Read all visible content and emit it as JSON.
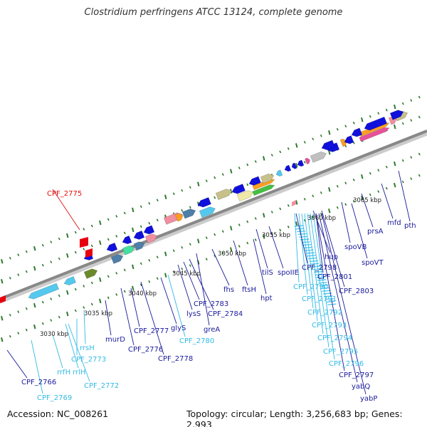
{
  "title": "Clostridium perfringens ATCC 13124, complete genome",
  "accession": "Accession: NC_008261",
  "topology": "Topology: circular; Length: 3,256,683 bp; Genes: 2,993",
  "colors": {
    "blue_gene": "#0a0ad8",
    "cyan_gene": "#55c8ee",
    "red_gene": "#e8000e",
    "label_blue": "#1a1a9a",
    "label_cyan": "#33bbe6",
    "label_red": "#e01010",
    "backbone": "#888888",
    "tick_green": "#1f6b1f"
  },
  "scale_ticks": [
    "3030 kbp",
    "3035 kbp",
    "3040 kbp",
    "3045 kbp",
    "3050 kbp",
    "3055 kbp",
    "3060 kbp",
    "3065 kbp"
  ],
  "gene_labels": [
    {
      "text": "CPF_2775",
      "color": "red"
    },
    {
      "text": "CPF_2766",
      "color": "blue"
    },
    {
      "text": "CPF_2769",
      "color": "cyan"
    },
    {
      "text": "rrfH",
      "color": "cyan"
    },
    {
      "text": "rrlH",
      "color": "cyan"
    },
    {
      "text": "CPF_2772",
      "color": "cyan"
    },
    {
      "text": "CPF_2773",
      "color": "cyan"
    },
    {
      "text": "rrsH",
      "color": "cyan"
    },
    {
      "text": "murD",
      "color": "blue"
    },
    {
      "text": "CPF_2776",
      "color": "blue"
    },
    {
      "text": "CPF_2777",
      "color": "blue"
    },
    {
      "text": "CPF_2778",
      "color": "blue"
    },
    {
      "text": "glyS",
      "color": "blue"
    },
    {
      "text": "CPF_2780",
      "color": "cyan"
    },
    {
      "text": "lysS",
      "color": "blue"
    },
    {
      "text": "CPF_2783",
      "color": "blue"
    },
    {
      "text": "CPF_2784",
      "color": "blue"
    },
    {
      "text": "greA",
      "color": "blue"
    },
    {
      "text": "fhs",
      "color": "blue"
    },
    {
      "text": "ftsH",
      "color": "blue"
    },
    {
      "text": "hpt",
      "color": "blue"
    },
    {
      "text": "tilS",
      "color": "blue"
    },
    {
      "text": "spoIIE",
      "color": "blue"
    },
    {
      "text": "CPF_2790",
      "color": "cyan"
    },
    {
      "text": "CPF_2791",
      "color": "cyan"
    },
    {
      "text": "CPF_2792",
      "color": "cyan"
    },
    {
      "text": "CPF_2793",
      "color": "cyan"
    },
    {
      "text": "CPF_2794",
      "color": "cyan"
    },
    {
      "text": "CPF_2795",
      "color": "cyan"
    },
    {
      "text": "CPF_2796",
      "color": "cyan"
    },
    {
      "text": "CPF_2797",
      "color": "blue"
    },
    {
      "text": "yabQ",
      "color": "blue"
    },
    {
      "text": "yabP",
      "color": "blue"
    },
    {
      "text": "CPF_2798",
      "color": "blue"
    },
    {
      "text": "hup",
      "color": "blue"
    },
    {
      "text": "CPF_2801",
      "color": "blue"
    },
    {
      "text": "CPF_2803",
      "color": "blue"
    },
    {
      "text": "spoVB",
      "color": "blue"
    },
    {
      "text": "spoVT",
      "color": "blue"
    },
    {
      "text": "prsA",
      "color": "blue"
    },
    {
      "text": "mfd",
      "color": "blue"
    },
    {
      "text": "pth",
      "color": "blue"
    }
  ]
}
